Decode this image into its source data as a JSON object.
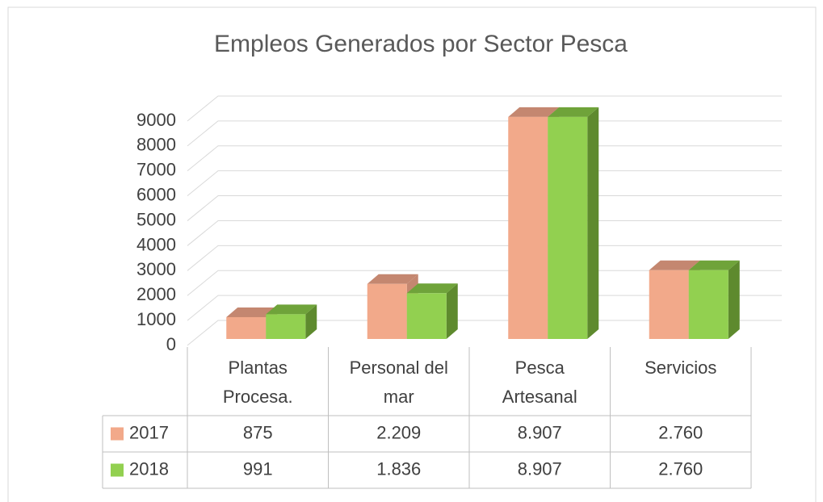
{
  "chart_data": {
    "type": "bar3d",
    "title": "Empleos Generados por Sector Pesca",
    "categories": [
      "Plantas Procesa.",
      "Personal del mar",
      "Pesca Artesanal",
      "Servicios"
    ],
    "series": [
      {
        "name": "2017",
        "color": "#f2a98a",
        "top_color": "#c48770",
        "side_color": "#c48770",
        "values": [
          875,
          2209,
          8907,
          2760
        ],
        "value_labels": [
          "875",
          "2.209",
          "8.907",
          "2.760"
        ]
      },
      {
        "name": "2018",
        "color": "#92d050",
        "top_color": "#6fa33a",
        "side_color": "#5e8a2e",
        "values": [
          991,
          1836,
          8907,
          2760
        ],
        "value_labels": [
          "991",
          "1.836",
          "8.907",
          "2.760"
        ]
      }
    ],
    "ylim": [
      0,
      9000
    ],
    "yticks": [
      0,
      1000,
      2000,
      3000,
      4000,
      5000,
      6000,
      7000,
      8000,
      9000
    ],
    "grid": true
  }
}
